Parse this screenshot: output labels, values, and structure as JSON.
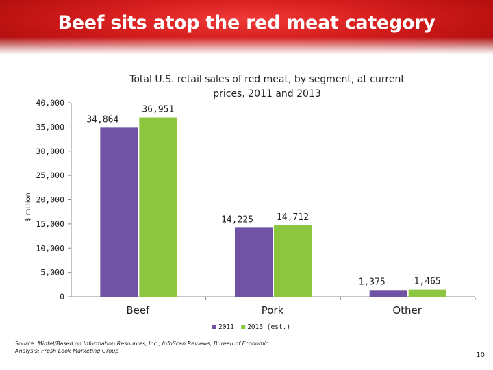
{
  "slide": {
    "title": "Beef sits atop the red meat category",
    "source": "Source: Mintel/Based on Information Resources, Inc., InfoScan Reviews; Bureau of Economic Analysis; Fresh Look Marketing Group",
    "page_number": "10"
  },
  "chart_data": {
    "type": "bar",
    "title": "Total U.S. retail sales of red meat, by segment, at current prices, 2011 and 2013",
    "ylabel": "$ million",
    "xlabel": "",
    "categories": [
      "Beef",
      "Pork",
      "Other"
    ],
    "series": [
      {
        "name": "2011",
        "color": "#7153a6",
        "values": [
          34864,
          14225,
          1375
        ],
        "labels": [
          "34,864",
          "14,225",
          "1,375"
        ]
      },
      {
        "name": "2013 (est.)",
        "color": "#8cc63f",
        "values": [
          36951,
          14712,
          1465
        ],
        "labels": [
          "36,951",
          "14,712",
          "1,465"
        ]
      }
    ],
    "ylim": [
      0,
      40000
    ],
    "yticks": [
      0,
      5000,
      10000,
      15000,
      20000,
      25000,
      30000,
      35000,
      40000
    ],
    "ytick_labels": [
      "0",
      "5,000",
      "10,000",
      "15,000",
      "20,000",
      "25,000",
      "30,000",
      "35,000",
      "40,000"
    ],
    "grid": false,
    "legend_position": "bottom"
  }
}
